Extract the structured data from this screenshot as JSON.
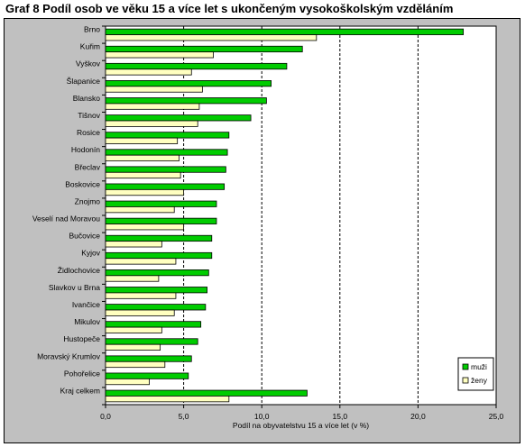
{
  "title": "Graf 8  Podíl osob ve věku 15 a více let s ukončeným vysokoškolským vzděláním",
  "chart_data": {
    "type": "bar",
    "orientation": "horizontal",
    "xlabel": "Podíl na obyvatelstvu 15 a více let (v  %)",
    "xlim": [
      0,
      25
    ],
    "xticks": [
      0,
      5,
      10,
      15,
      20,
      25
    ],
    "xtick_labels": [
      "0,0",
      "5,0",
      "10,0",
      "15,0",
      "20,0",
      "25,0"
    ],
    "grid": "vertical dashed",
    "legend_position": "bottom-right",
    "categories": [
      "Brno",
      "Kuřim",
      "Vyškov",
      "Šlapanice",
      "Blansko",
      "Tišnov",
      "Rosice",
      "Hodonín",
      "Břeclav",
      "Boskovice",
      "Znojmo",
      "Veselí nad Moravou",
      "Bučovice",
      "Kyjov",
      "Židlochovice",
      "Slavkov u Brna",
      "Ivančice",
      "Mikulov",
      "Hustopeče",
      "Moravský Krumlov",
      "Pohořelice",
      "Kraj celkem"
    ],
    "series": [
      {
        "name": "muži",
        "color": "#00cc00",
        "values": [
          22.9,
          12.6,
          11.6,
          10.6,
          10.3,
          9.3,
          7.9,
          7.8,
          7.7,
          7.6,
          7.1,
          7.1,
          6.8,
          6.8,
          6.6,
          6.5,
          6.4,
          6.1,
          5.9,
          5.5,
          5.3,
          12.9
        ]
      },
      {
        "name": "ženy",
        "color": "#ffffc0",
        "values": [
          13.5,
          6.9,
          5.5,
          6.2,
          6.0,
          5.9,
          4.6,
          4.7,
          4.8,
          5.0,
          4.4,
          5.0,
          3.6,
          4.5,
          3.4,
          4.5,
          4.4,
          3.6,
          3.5,
          3.8,
          2.8,
          7.9
        ]
      }
    ]
  }
}
